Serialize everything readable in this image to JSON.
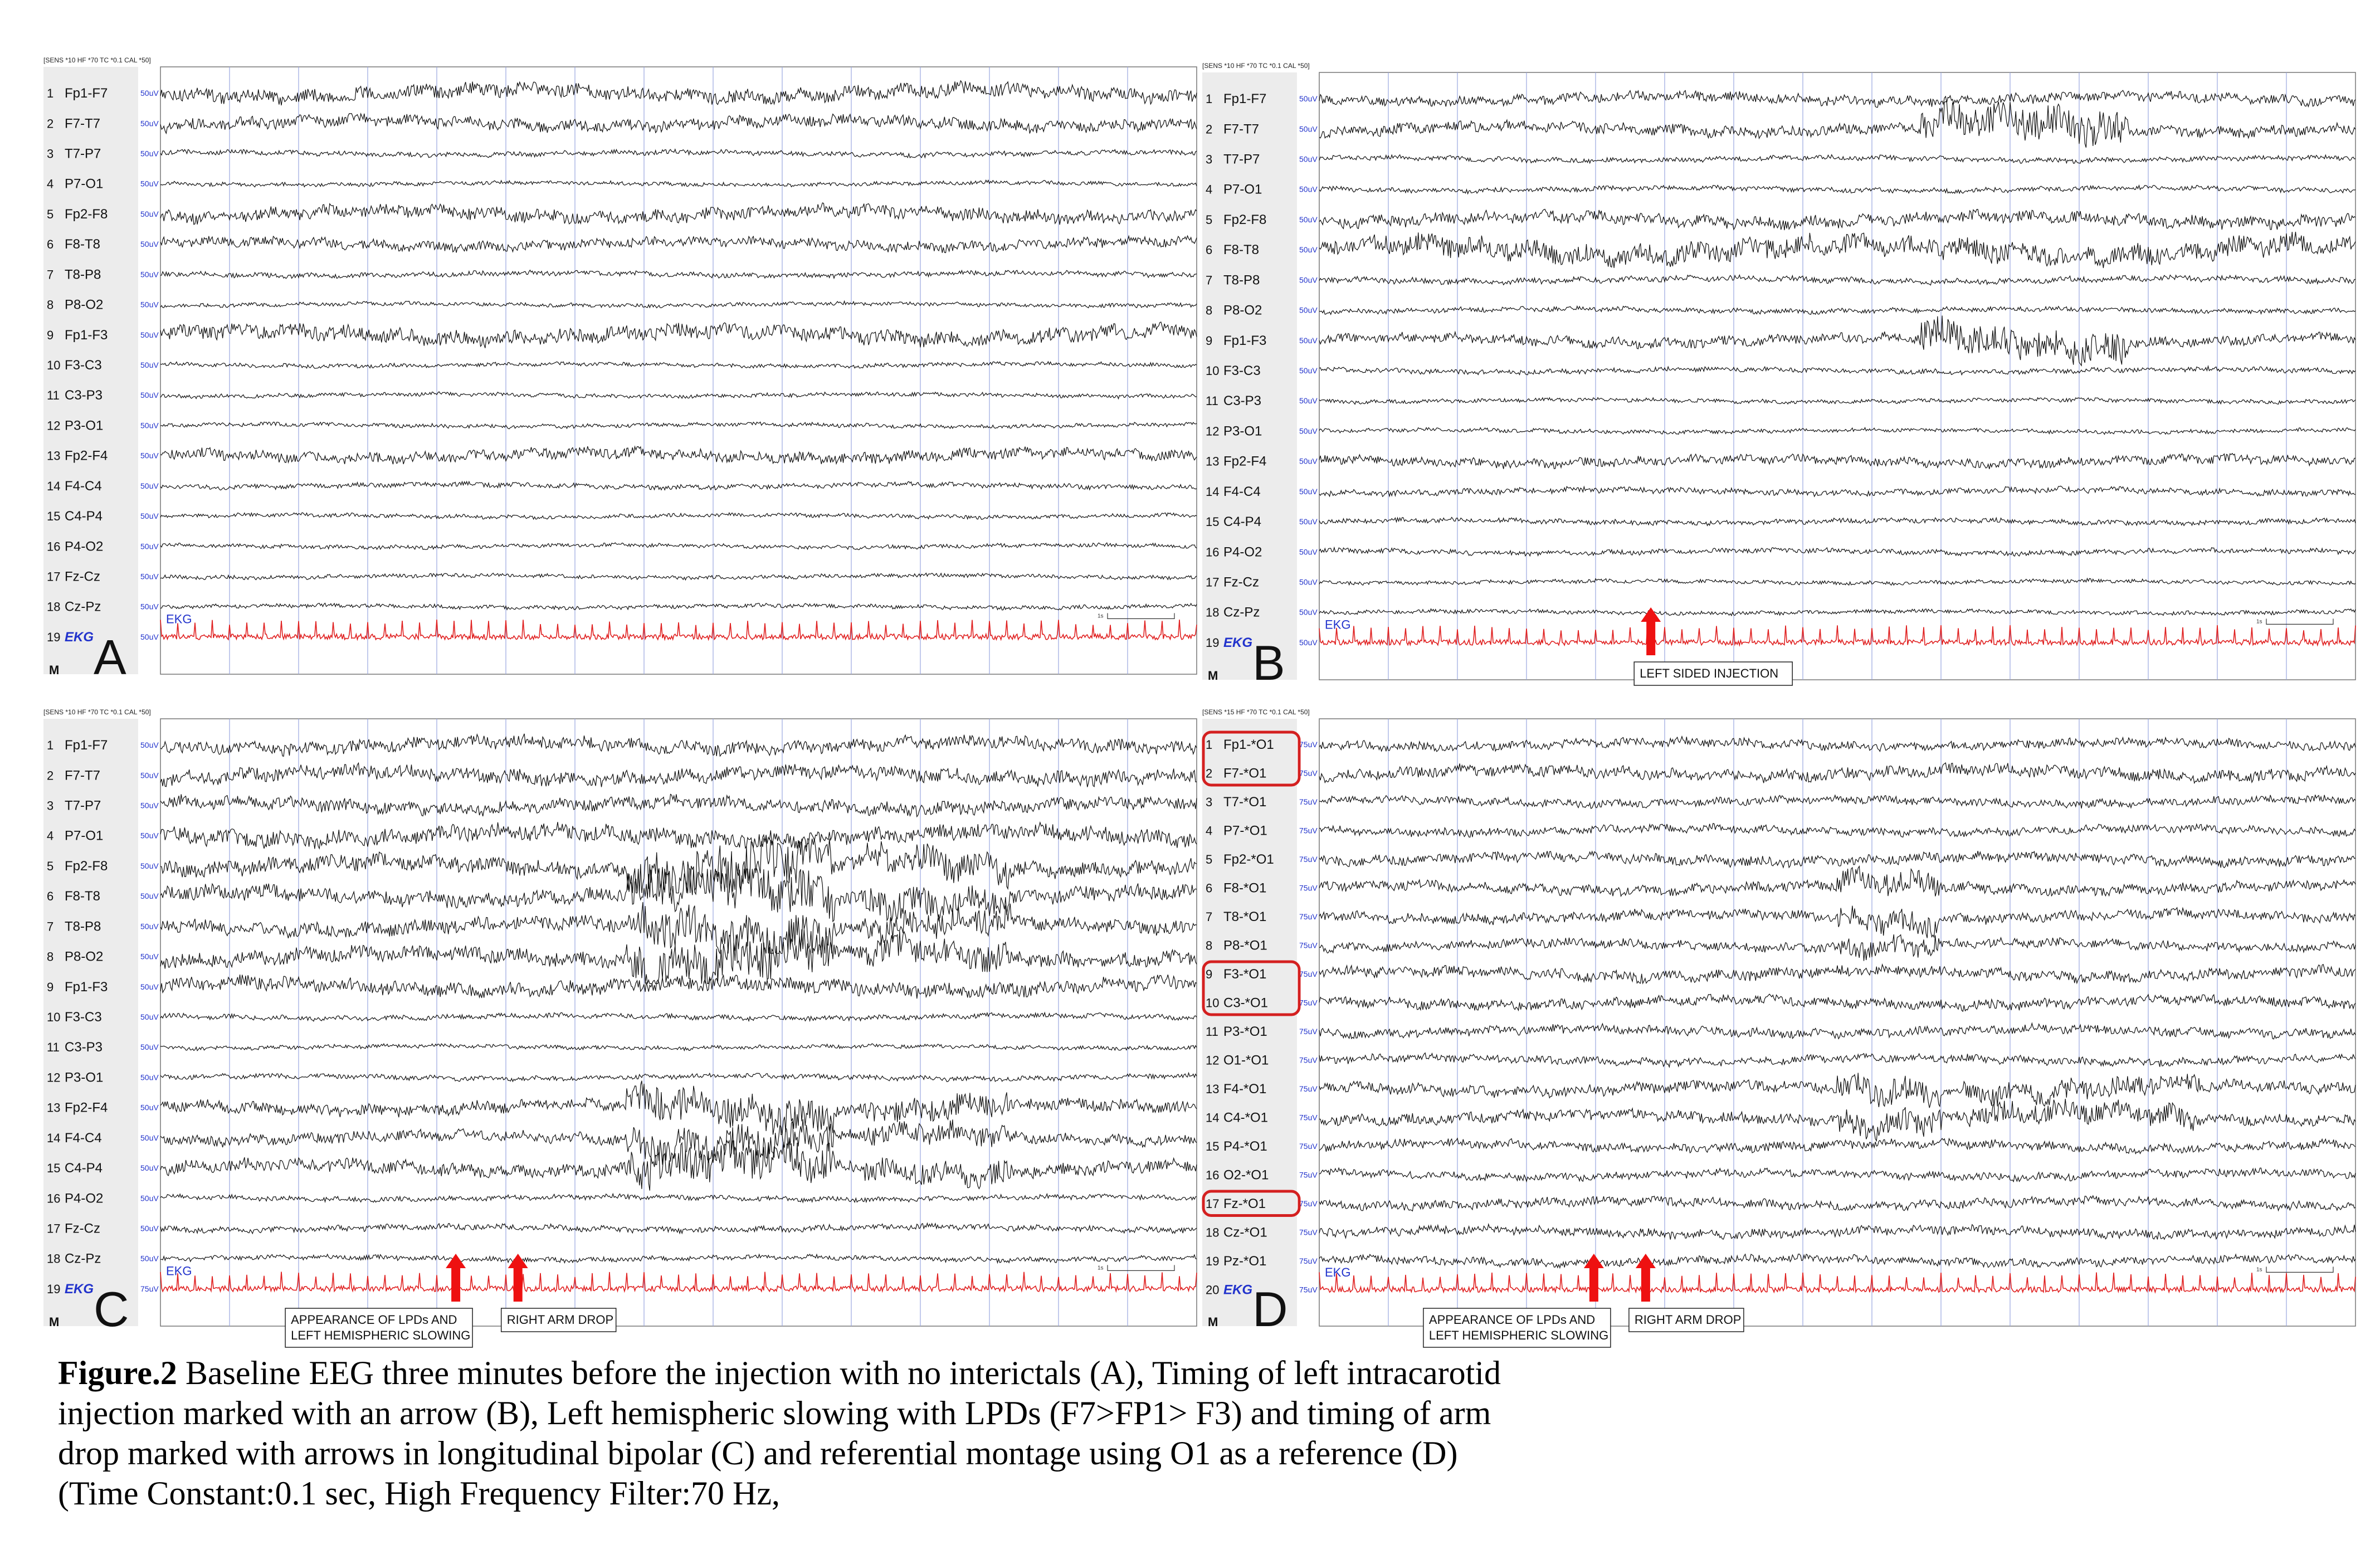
{
  "figure": {
    "caption_label": "Figure.2",
    "caption_text": " Baseline EEG three minutes before the injection with no interictals (A), Timing of left intracarotid injection marked with an arrow (B), Left hemispheric slowing with LPDs (F7>FP1> F3) and timing of arm drop marked with arrows in longitudinal bipolar (C) and referential montage using O1 as a reference (D) (Time Constant:0.1 sec, High Frequency Filter:70 Hz,"
  },
  "colors": {
    "trace": "#111111",
    "ekg": "#e02020",
    "grid": "#9aa6e0",
    "sens": "#2233cc",
    "arrow": "#ee1111",
    "highlight": "#d42020",
    "channel_bg": "#ececec"
  },
  "panels": [
    {
      "letter": "A",
      "header": "[SENS *10  HF *70  TC *0.1  CAL *50]",
      "sensitivity": "50uV",
      "ekg_label": "EKG",
      "marker": "M",
      "scale_bar": "1s",
      "channels": [
        {
          "num": "1",
          "name": "Fp1-F7"
        },
        {
          "num": "2",
          "name": "F7-T7"
        },
        {
          "num": "3",
          "name": "T7-P7"
        },
        {
          "num": "4",
          "name": "P7-O1"
        },
        {
          "num": "5",
          "name": "Fp2-F8"
        },
        {
          "num": "6",
          "name": "F8-T8"
        },
        {
          "num": "7",
          "name": "T8-P8"
        },
        {
          "num": "8",
          "name": "P8-O2"
        },
        {
          "num": "9",
          "name": "Fp1-F3"
        },
        {
          "num": "10",
          "name": "F3-C3"
        },
        {
          "num": "11",
          "name": "C3-P3"
        },
        {
          "num": "12",
          "name": "P3-O1"
        },
        {
          "num": "13",
          "name": "Fp2-F4"
        },
        {
          "num": "14",
          "name": "F4-C4"
        },
        {
          "num": "15",
          "name": "C4-P4"
        },
        {
          "num": "16",
          "name": "P4-O2"
        },
        {
          "num": "17",
          "name": "Fz-Cz"
        },
        {
          "num": "18",
          "name": "Cz-Pz"
        },
        {
          "num": "19",
          "name": "EKG"
        }
      ],
      "annotations": [],
      "highlighted_channels": []
    },
    {
      "letter": "B",
      "header": "[SENS *10  HF *70  TC *0.1  CAL *50]",
      "sensitivity": "50uV",
      "ekg_label": "EKG",
      "marker": "M",
      "scale_bar": "1s",
      "channels": [
        {
          "num": "1",
          "name": "Fp1-F7"
        },
        {
          "num": "2",
          "name": "F7-T7"
        },
        {
          "num": "3",
          "name": "T7-P7"
        },
        {
          "num": "4",
          "name": "P7-O1"
        },
        {
          "num": "5",
          "name": "Fp2-F8"
        },
        {
          "num": "6",
          "name": "F8-T8"
        },
        {
          "num": "7",
          "name": "T8-P8"
        },
        {
          "num": "8",
          "name": "P8-O2"
        },
        {
          "num": "9",
          "name": "Fp1-F3"
        },
        {
          "num": "10",
          "name": "F3-C3"
        },
        {
          "num": "11",
          "name": "C3-P3"
        },
        {
          "num": "12",
          "name": "P3-O1"
        },
        {
          "num": "13",
          "name": "Fp2-F4"
        },
        {
          "num": "14",
          "name": "F4-C4"
        },
        {
          "num": "15",
          "name": "C4-P4"
        },
        {
          "num": "16",
          "name": "P4-O2"
        },
        {
          "num": "17",
          "name": "Fz-Cz"
        },
        {
          "num": "18",
          "name": "Cz-Pz"
        },
        {
          "num": "19",
          "name": "EKG"
        }
      ],
      "annotations": [
        {
          "label": "LEFT SIDED INJECTION",
          "time": 0.32
        }
      ],
      "highlighted_channels": []
    },
    {
      "letter": "C",
      "header": "[SENS *10  HF *70  TC *0.1  CAL *50]",
      "sensitivity": "50uV",
      "ekg_sensitivity": "75uV",
      "ekg_label": "EKG",
      "marker": "M",
      "scale_bar": "1s",
      "channels": [
        {
          "num": "1",
          "name": "Fp1-F7"
        },
        {
          "num": "2",
          "name": "F7-T7"
        },
        {
          "num": "3",
          "name": "T7-P7"
        },
        {
          "num": "4",
          "name": "P7-O1"
        },
        {
          "num": "5",
          "name": "Fp2-F8"
        },
        {
          "num": "6",
          "name": "F8-T8"
        },
        {
          "num": "7",
          "name": "T8-P8"
        },
        {
          "num": "8",
          "name": "P8-O2"
        },
        {
          "num": "9",
          "name": "Fp1-F3"
        },
        {
          "num": "10",
          "name": "F3-C3"
        },
        {
          "num": "11",
          "name": "C3-P3"
        },
        {
          "num": "12",
          "name": "P3-O1"
        },
        {
          "num": "13",
          "name": "Fp2-F4"
        },
        {
          "num": "14",
          "name": "F4-C4"
        },
        {
          "num": "15",
          "name": "C4-P4"
        },
        {
          "num": "16",
          "name": "P4-O2"
        },
        {
          "num": "17",
          "name": "Fz-Cz"
        },
        {
          "num": "18",
          "name": "Cz-Pz"
        },
        {
          "num": "19",
          "name": "EKG"
        }
      ],
      "annotations": [
        {
          "label": "APPEARANCE OF LPDs AND\nLEFT HEMISPHERIC SLOWING",
          "time": 0.285
        },
        {
          "label": "RIGHT ARM DROP",
          "time": 0.345
        }
      ],
      "highlighted_channels": []
    },
    {
      "letter": "D",
      "header": "[SENS *15  HF *70  TC *0.1  CAL *50]",
      "sensitivity": "75uV",
      "ekg_label": "EKG",
      "marker": "M",
      "scale_bar": "1s",
      "channels": [
        {
          "num": "1",
          "name": "Fp1-*O1"
        },
        {
          "num": "2",
          "name": "F7-*O1"
        },
        {
          "num": "3",
          "name": "T7-*O1"
        },
        {
          "num": "4",
          "name": "P7-*O1"
        },
        {
          "num": "5",
          "name": "Fp2-*O1"
        },
        {
          "num": "6",
          "name": "F8-*O1"
        },
        {
          "num": "7",
          "name": "T8-*O1"
        },
        {
          "num": "8",
          "name": "P8-*O1"
        },
        {
          "num": "9",
          "name": "F3-*O1"
        },
        {
          "num": "10",
          "name": "C3-*O1"
        },
        {
          "num": "11",
          "name": "P3-*O1"
        },
        {
          "num": "12",
          "name": "O1-*O1"
        },
        {
          "num": "13",
          "name": "F4-*O1"
        },
        {
          "num": "14",
          "name": "C4-*O1"
        },
        {
          "num": "15",
          "name": "P4-*O1"
        },
        {
          "num": "16",
          "name": "O2-*O1"
        },
        {
          "num": "17",
          "name": "Fz-*O1"
        },
        {
          "num": "18",
          "name": "Cz-*O1"
        },
        {
          "num": "19",
          "name": "Pz-*O1"
        },
        {
          "num": "20",
          "name": "EKG"
        }
      ],
      "annotations": [
        {
          "label": "APPEARANCE OF LPDs AND\nLEFT HEMISPHERIC SLOWING",
          "time": 0.265
        },
        {
          "label": "RIGHT ARM DROP",
          "time": 0.315
        }
      ],
      "highlighted_channels": [
        [
          0,
          1
        ],
        [
          8,
          9
        ],
        [
          16,
          16
        ]
      ]
    }
  ]
}
